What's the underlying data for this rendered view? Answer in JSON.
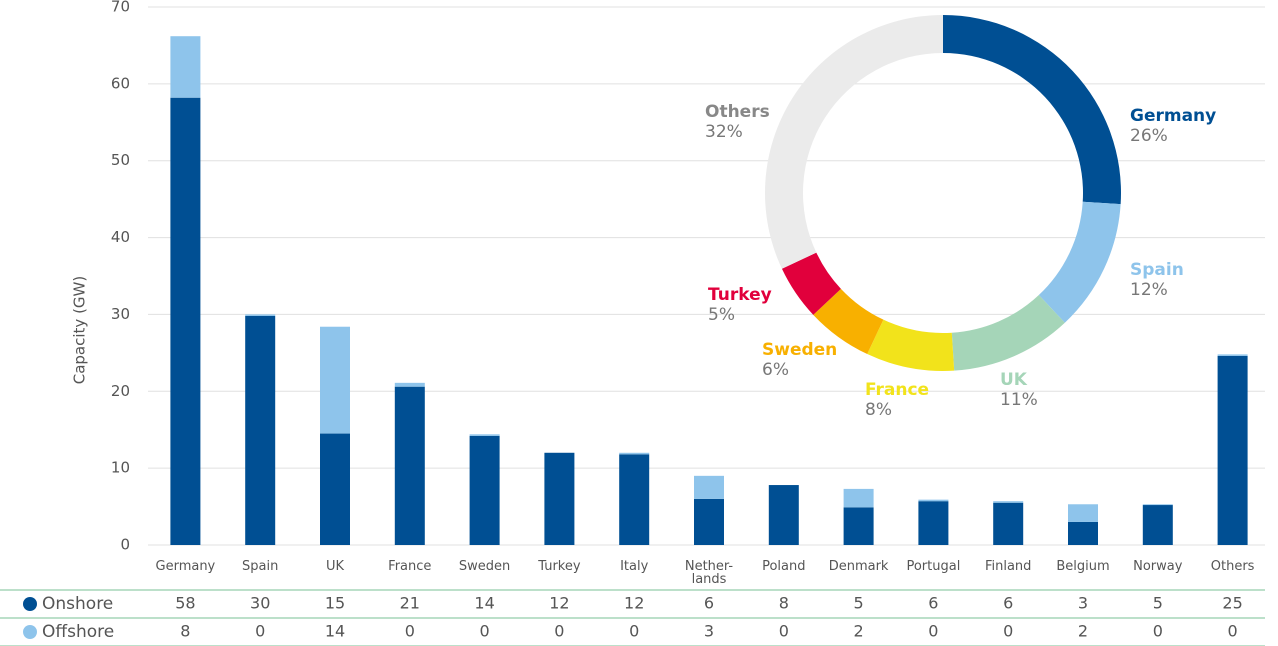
{
  "chart_data": [
    {
      "type": "bar",
      "stacked": true,
      "ylabel": "Capacity (GW)",
      "categories": [
        "Germany",
        "Spain",
        "UK",
        "France",
        "Sweden",
        "Turkey",
        "Italy",
        "Nether-\nlands",
        "Poland",
        "Denmark",
        "Portugal",
        "Finland",
        "Belgium",
        "Norway",
        "Others"
      ],
      "series": [
        {
          "name": "Onshore",
          "color": "#004f93",
          "values": [
            58.2,
            29.8,
            14.5,
            20.6,
            14.2,
            12.0,
            11.8,
            6.0,
            7.8,
            4.9,
            5.7,
            5.5,
            3.0,
            5.2,
            24.6
          ],
          "value_labels": [
            "58",
            "30",
            "15",
            "21",
            "14",
            "12",
            "12",
            "6",
            "8",
            "5",
            "6",
            "6",
            "3",
            "5",
            "25"
          ]
        },
        {
          "name": "Offshore",
          "color": "#8ec4eb",
          "values": [
            8.0,
            0.2,
            13.9,
            0.5,
            0.2,
            0.0,
            0.2,
            3.0,
            0.0,
            2.4,
            0.2,
            0.2,
            2.3,
            0.1,
            0.2
          ],
          "value_labels": [
            "8",
            "0",
            "14",
            "0",
            "0",
            "0",
            "0",
            "3",
            "0",
            "2",
            "0",
            "0",
            "2",
            "0",
            "0"
          ]
        }
      ],
      "ylim": [
        0,
        70
      ],
      "yticks": [
        0,
        10,
        20,
        30,
        40,
        50,
        60,
        70
      ],
      "grid": true
    },
    {
      "type": "donut",
      "categories": [
        "Germany",
        "Spain",
        "UK",
        "France",
        "Sweden",
        "Turkey",
        "Others"
      ],
      "values": [
        26,
        12,
        11,
        8,
        6,
        5,
        32
      ],
      "value_labels": [
        "26%",
        "12%",
        "11%",
        "8%",
        "6%",
        "5%",
        "32%"
      ],
      "colors": [
        "#004f93",
        "#8ec4eb",
        "#a5d5b8",
        "#f2e31b",
        "#f8b000",
        "#e1003c",
        "#ebebeb"
      ]
    }
  ]
}
